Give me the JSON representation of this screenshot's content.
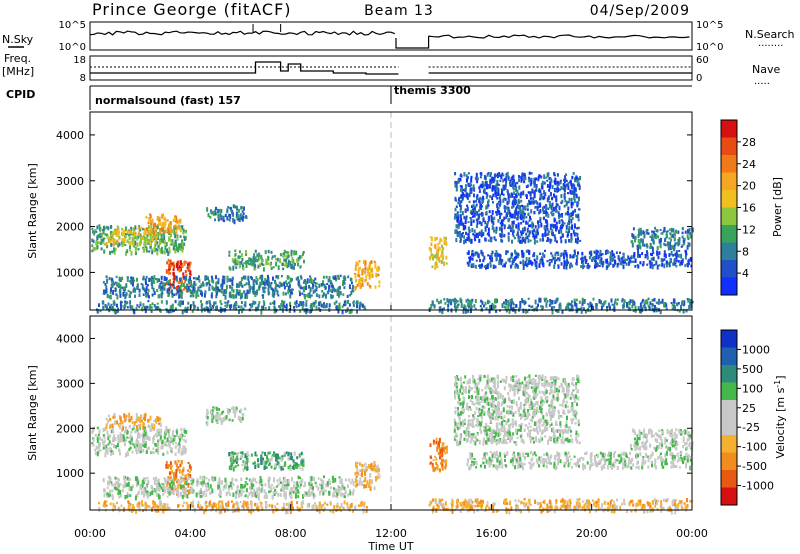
{
  "header": {
    "station": "Prince George (fitACF)",
    "beam": "Beam 13",
    "date": "04/Sep/2009"
  },
  "strip_labels": {
    "nsky": "N.Sky",
    "freq_a": "Freq.",
    "freq_b": "[MHz]",
    "cpid": "CPID",
    "nsearch": "N.Search",
    "nave": "Nave",
    "nsearch_dots": "........",
    "nave_dots": "....."
  },
  "strip_ticks": {
    "noise_top": "10^5",
    "noise_bottom": "10^0",
    "freq_top": "18",
    "freq_bottom": "8",
    "nave_top": "60",
    "nave_bottom": "0"
  },
  "cpid_segments": [
    {
      "label": "normalsound (fast) 157",
      "start_hour": 0,
      "end_hour": 12
    },
    {
      "label": "themis 3300",
      "start_hour": 12,
      "end_hour": 24
    }
  ],
  "chart_data": [
    {
      "type": "heatmap",
      "name": "power",
      "ylabel": "Slant Range [km]",
      "xlim": [
        0,
        24
      ],
      "ylim": [
        180,
        4500
      ],
      "yticks": [
        1000,
        2000,
        3000,
        4000
      ],
      "colorbar": {
        "label": "Power [dB]",
        "ticks": [
          "4",
          "8",
          "12",
          "16",
          "20",
          "24",
          "28"
        ],
        "colors": [
          "#1030ff",
          "#2050c8",
          "#2e7f9a",
          "#3aa35a",
          "#8cc63e",
          "#f0c020",
          "#f5a623",
          "#f07a1a",
          "#e84c14",
          "#d41010"
        ]
      },
      "echo_regions": [
        {
          "x0": 0.05,
          "x1": 3.8,
          "y0": 1450,
          "y1": 2050,
          "level": 3
        },
        {
          "x0": 0.6,
          "x1": 2.8,
          "y0": 1650,
          "y1": 2000,
          "level": 5
        },
        {
          "x0": 2.2,
          "x1": 3.6,
          "y0": 1900,
          "y1": 2300,
          "level": 6
        },
        {
          "x0": 3.0,
          "x1": 4.0,
          "y0": 600,
          "y1": 1300,
          "level": 8
        },
        {
          "x0": 0.2,
          "x1": 11.0,
          "y0": 180,
          "y1": 400,
          "level": 2
        },
        {
          "x0": 0.5,
          "x1": 10.5,
          "y0": 500,
          "y1": 950,
          "level": 2
        },
        {
          "x0": 4.6,
          "x1": 6.2,
          "y0": 2150,
          "y1": 2500,
          "level": 2
        },
        {
          "x0": 5.5,
          "x1": 8.5,
          "y0": 1100,
          "y1": 1500,
          "level": 3
        },
        {
          "x0": 10.5,
          "x1": 11.5,
          "y0": 700,
          "y1": 1300,
          "level": 6
        },
        {
          "x0": 13.5,
          "x1": 14.2,
          "y0": 1100,
          "y1": 1800,
          "level": 5
        },
        {
          "x0": 13.5,
          "x1": 24.0,
          "y0": 180,
          "y1": 450,
          "level": 2
        },
        {
          "x0": 15.0,
          "x1": 24.0,
          "y0": 1150,
          "y1": 1500,
          "level": 1
        },
        {
          "x0": 21.5,
          "x1": 24.0,
          "y0": 1550,
          "y1": 2000,
          "level": 2
        },
        {
          "x0": 14.5,
          "x1": 19.5,
          "y0": 1700,
          "y1": 3200,
          "level": 1
        }
      ]
    },
    {
      "type": "heatmap",
      "name": "velocity",
      "xlabel": "Time UT",
      "ylabel": "Slant Range [km]",
      "xlim": [
        0,
        24
      ],
      "ylim": [
        180,
        4500
      ],
      "yticks": [
        1000,
        2000,
        3000,
        4000
      ],
      "xticks": [
        "00:00",
        "04:00",
        "08:00",
        "12:00",
        "16:00",
        "20:00",
        "00:00"
      ],
      "colorbar": {
        "label": "Velocity [m s",
        "label_sup": "-1",
        "label_end": "]",
        "ticks": [
          "1000",
          "500",
          "100",
          "25",
          "-25",
          "-100",
          "-500",
          "-1000"
        ],
        "colors": [
          "#1030c8",
          "#2060b0",
          "#2e8a7a",
          "#44b84a",
          "#c8c8c8",
          "#c8c8c8",
          "#f5b030",
          "#f28c1c",
          "#e85a14",
          "#d41010"
        ]
      },
      "echo_regions": [
        {
          "x0": 0.05,
          "x1": 3.8,
          "y0": 1450,
          "y1": 2050,
          "level": 4
        },
        {
          "x0": 0.6,
          "x1": 2.8,
          "y0": 2050,
          "y1": 2350,
          "level": 6
        },
        {
          "x0": 3.0,
          "x1": 4.0,
          "y0": 600,
          "y1": 1300,
          "level": 7
        },
        {
          "x0": 0.2,
          "x1": 11.0,
          "y0": 180,
          "y1": 400,
          "level": 6
        },
        {
          "x0": 0.5,
          "x1": 10.5,
          "y0": 500,
          "y1": 950,
          "level": 4
        },
        {
          "x0": 4.6,
          "x1": 6.2,
          "y0": 2150,
          "y1": 2500,
          "level": 4
        },
        {
          "x0": 5.5,
          "x1": 8.5,
          "y0": 1100,
          "y1": 1500,
          "level": 3
        },
        {
          "x0": 10.5,
          "x1": 11.5,
          "y0": 700,
          "y1": 1300,
          "level": 6
        },
        {
          "x0": 13.5,
          "x1": 14.2,
          "y0": 1100,
          "y1": 1800,
          "level": 7
        },
        {
          "x0": 13.5,
          "x1": 24.0,
          "y0": 180,
          "y1": 450,
          "level": 6
        },
        {
          "x0": 15.0,
          "x1": 24.0,
          "y0": 1150,
          "y1": 1500,
          "level": 4
        },
        {
          "x0": 21.5,
          "x1": 24.0,
          "y0": 1550,
          "y1": 2000,
          "level": 4
        },
        {
          "x0": 14.5,
          "x1": 19.5,
          "y0": 1700,
          "y1": 3200,
          "level": 4
        }
      ]
    }
  ]
}
